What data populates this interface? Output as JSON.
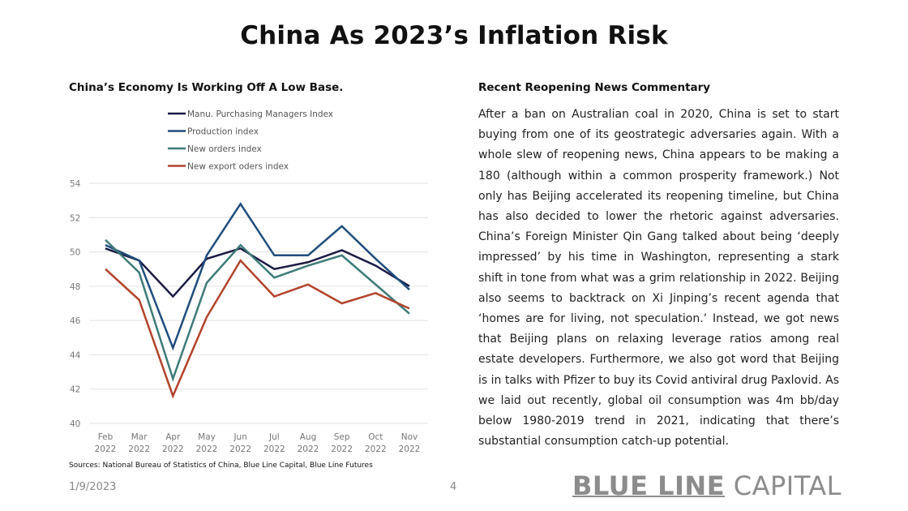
{
  "title": "China As 2023’s Inflation Risk",
  "news": {
    "title": "Recent Reopening News Commentary",
    "body": "After a ban on Australian coal in 2020, China is set to start buying from one of its geostrategic adversaries again. With a whole slew of reopening news, China appears to be making a 180 (although within a common prosperity framework.) Not only has Beijing accelerated its reopening timeline, but China has also decided to lower the rhetoric against adversaries. China’s Foreign Minister Qin Gang talked about being ‘deeply impressed’ by his time in Washington, representing a stark shift in tone from what was a grim relationship in 2022. Beijing also seems to backtrack on Xi Jinping’s recent agenda that ‘homes are for living, not speculation.’ Instead, we got news that Beijing plans on relaxing leverage ratios among real estate developers. Furthermore, we also got word that Beijing is in talks with Pfizer to buy its Covid antiviral drug Paxlovid. As we laid out recently, global oil consumption was 4m bb/day below 1980-2019 trend in 2021, indicating that there’s substantial consumption catch-up potential."
  },
  "footer": {
    "sources": "Sources: National Bureau of Statistics of China, Blue Line Capital, Blue Line Futures",
    "date": "1/9/2023",
    "page": "4",
    "logo_bold": "BLUE LINE",
    "logo_light": "CAPITAL"
  },
  "chart_data": {
    "type": "line",
    "title": "China’s Economy Is Working Off A Low Base.",
    "xlabel": "",
    "ylabel": "",
    "categories": [
      [
        "Feb",
        "2022"
      ],
      [
        "Mar",
        "2022"
      ],
      [
        "Apr",
        "2022"
      ],
      [
        "May",
        "2022"
      ],
      [
        "Jun",
        "2022"
      ],
      [
        "Jul",
        "2022"
      ],
      [
        "Aug",
        "2022"
      ],
      [
        "Sep",
        "2022"
      ],
      [
        "Oct",
        "2022"
      ],
      [
        "Nov",
        "2022"
      ]
    ],
    "ylim": [
      40,
      54
    ],
    "yticks": [
      40,
      42,
      44,
      46,
      48,
      50,
      52,
      54
    ],
    "grid": true,
    "legend_position": "top",
    "series": [
      {
        "name": "Manu. Purchasing Managers Index",
        "color": "#1b1b45",
        "values": [
          50.2,
          49.5,
          47.4,
          49.6,
          50.2,
          49.0,
          49.4,
          50.1,
          49.2,
          48.0
        ]
      },
      {
        "name": "Production index",
        "color": "#1f4e7d",
        "values": [
          50.4,
          49.5,
          44.4,
          49.8,
          52.8,
          49.8,
          49.8,
          51.5,
          49.6,
          47.8
        ]
      },
      {
        "name": "New orders index",
        "color": "#3e7b78",
        "values": [
          50.7,
          48.8,
          42.6,
          48.2,
          50.4,
          48.5,
          49.2,
          49.8,
          48.1,
          46.4
        ]
      },
      {
        "name": "New export oders index",
        "color": "#b2432b",
        "values": [
          49.0,
          47.2,
          41.6,
          46.2,
          49.5,
          47.4,
          48.1,
          47.0,
          47.6,
          46.7
        ]
      }
    ]
  }
}
